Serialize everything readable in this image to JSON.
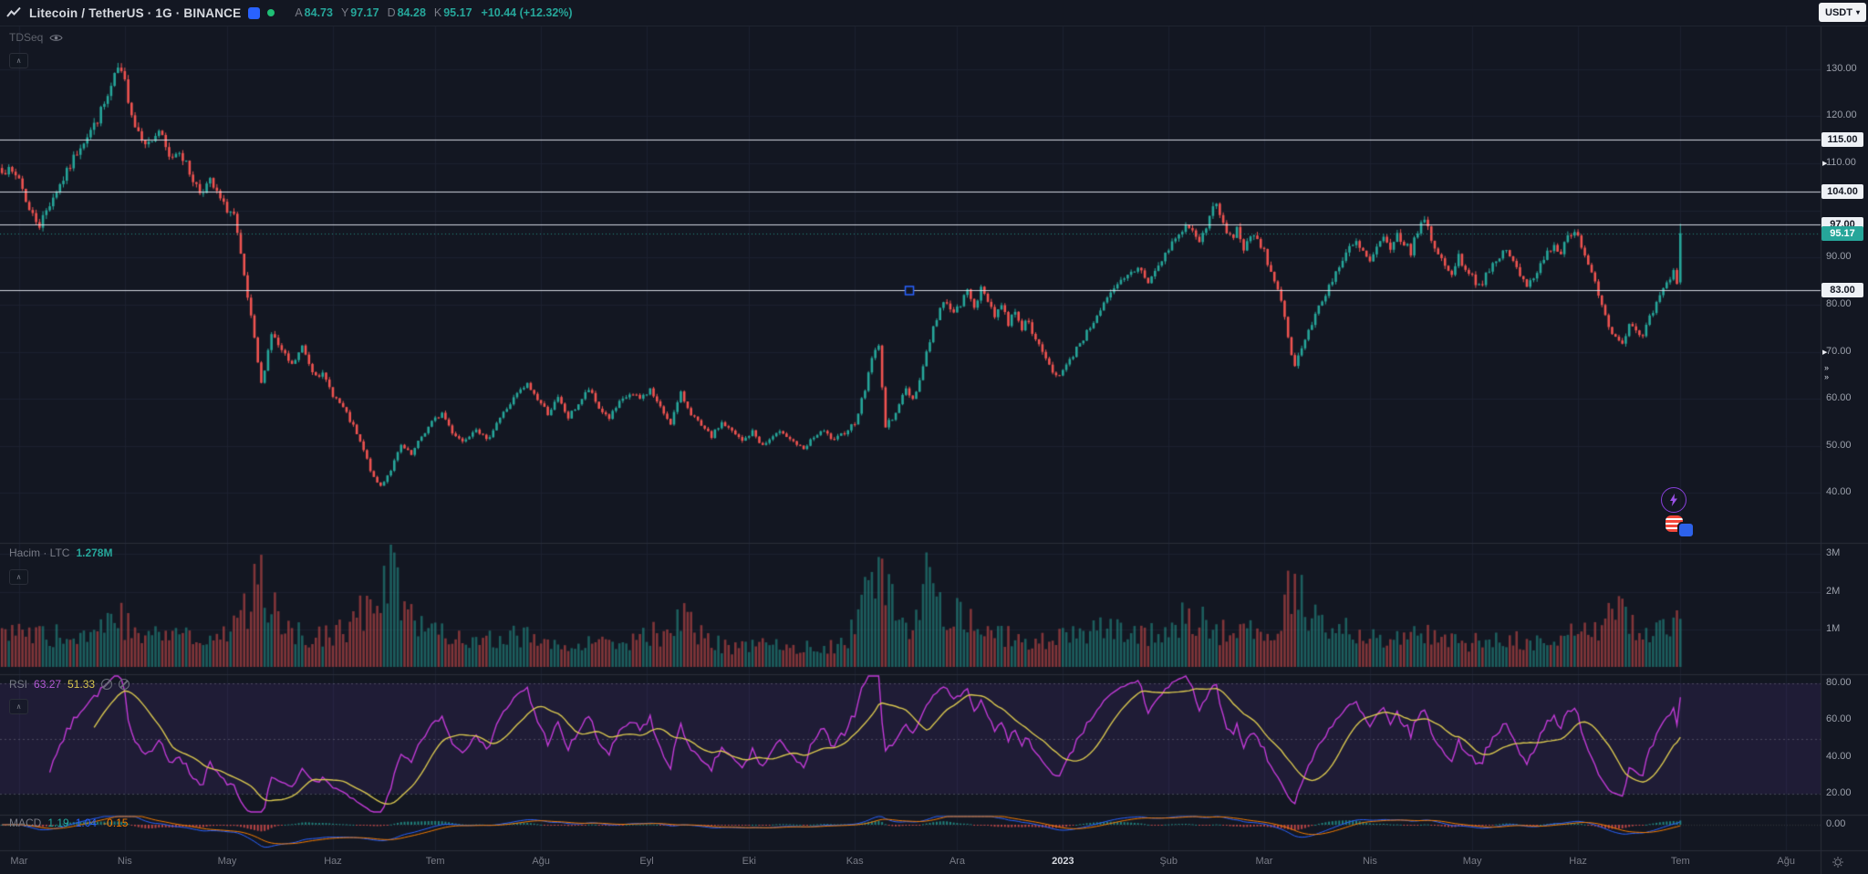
{
  "topbar": {
    "symbol_title": "Litecoin / TetherUS · 1G · BINANCE",
    "ohlc": [
      {
        "label": "A",
        "value": "84.73"
      },
      {
        "label": "Y",
        "value": "97.17"
      },
      {
        "label": "D",
        "value": "84.28"
      },
      {
        "label": "K",
        "value": "95.17"
      }
    ],
    "change": "+10.44 (+12.32%)",
    "currency_button": "USDT"
  },
  "legends": {
    "main_indicator": "TDSeq",
    "volume_label": "Hacim · LTC",
    "volume_value": "1.278M",
    "rsi_label": "RSI",
    "rsi_value": "63.27",
    "rsi_ma_value": "51.33",
    "macd_label": "MACD",
    "macd_values": [
      "1.19",
      "1.04",
      "-0.15"
    ]
  },
  "colors": {
    "background": "#131722",
    "up": "#26a69a",
    "down": "#ef5350",
    "grid": "#1c2130",
    "separator": "#2a2e39",
    "rsi_line": "#c13ad6",
    "rsi_ma": "#d8c64f",
    "macd_line": "#2962ff",
    "macd_signal": "#f57c00",
    "level_line": "#e8ebf3",
    "accent_blue": "#2962ff",
    "text": "#787b86",
    "current_badge": "#26a69a"
  },
  "chart_data": {
    "type": "candlestick",
    "title": "LTCUSDT daily candles with Volume, RSI and MACD panes",
    "x_axis": {
      "months": [
        {
          "label": "Mar",
          "day": 0
        },
        {
          "label": "Nis",
          "day": 31
        },
        {
          "label": "May",
          "day": 61
        },
        {
          "label": "Haz",
          "day": 92
        },
        {
          "label": "Tem",
          "day": 122
        },
        {
          "label": "Ağu",
          "day": 153
        },
        {
          "label": "Eyl",
          "day": 184
        },
        {
          "label": "Eki",
          "day": 214
        },
        {
          "label": "Kas",
          "day": 245
        },
        {
          "label": "Ara",
          "day": 275
        },
        {
          "label": "2023",
          "day": 306,
          "year": true
        },
        {
          "label": "Şub",
          "day": 337
        },
        {
          "label": "Mar",
          "day": 365
        },
        {
          "label": "Nis",
          "day": 396
        },
        {
          "label": "May",
          "day": 426
        },
        {
          "label": "Haz",
          "day": 457
        },
        {
          "label": "Tem",
          "day": 487
        },
        {
          "label": "Ağu",
          "day": 518
        }
      ]
    },
    "price_axis": {
      "ticks": [
        130,
        120,
        110,
        90,
        80,
        70,
        60,
        50,
        40
      ],
      "top_price": 139.1,
      "bottom_price": 29.5
    },
    "grid_prices": [
      130,
      120,
      110,
      100,
      90,
      80,
      70,
      60,
      50,
      40
    ],
    "levels": [
      115,
      104,
      97,
      83
    ],
    "current_price": 95.17,
    "last_candle": {
      "open": 84.73,
      "high": 97.17,
      "low": 84.28,
      "close": 95.17
    },
    "marker": {
      "day": 261,
      "price": 83
    },
    "volume_axis": {
      "ticks": [
        {
          "label": "3M",
          "value": 3
        },
        {
          "label": "2M",
          "value": 2
        },
        {
          "label": "1M",
          "value": 1
        }
      ]
    },
    "last_volume": 1.278,
    "rsi_axis": {
      "ticks": [
        80,
        60,
        40,
        20
      ],
      "dashed": [
        80,
        50,
        20
      ]
    },
    "macd_axis": {
      "ticks": [
        0
      ]
    },
    "price_anchors": [
      [
        -5,
        109
      ],
      [
        0,
        107
      ],
      [
        3,
        100
      ],
      [
        6,
        97
      ],
      [
        10,
        103
      ],
      [
        14,
        108
      ],
      [
        18,
        114
      ],
      [
        22,
        118
      ],
      [
        26,
        124
      ],
      [
        29,
        130
      ],
      [
        31,
        127
      ],
      [
        34,
        118
      ],
      [
        38,
        114
      ],
      [
        41,
        117
      ],
      [
        44,
        111
      ],
      [
        47,
        113
      ],
      [
        50,
        108
      ],
      [
        53,
        104
      ],
      [
        56,
        106
      ],
      [
        60,
        101
      ],
      [
        63,
        99
      ],
      [
        65,
        90
      ],
      [
        68,
        77
      ],
      [
        71,
        63
      ],
      [
        74,
        74
      ],
      [
        77,
        70
      ],
      [
        80,
        67
      ],
      [
        83,
        71
      ],
      [
        86,
        66
      ],
      [
        89,
        65
      ],
      [
        92,
        61
      ],
      [
        95,
        58
      ],
      [
        98,
        54
      ],
      [
        101,
        49
      ],
      [
        104,
        43
      ],
      [
        106,
        41.5
      ],
      [
        109,
        45
      ],
      [
        112,
        50
      ],
      [
        115,
        48
      ],
      [
        118,
        52
      ],
      [
        121,
        55
      ],
      [
        124,
        57
      ],
      [
        127,
        53
      ],
      [
        130,
        51
      ],
      [
        134,
        54
      ],
      [
        137,
        51
      ],
      [
        140,
        55
      ],
      [
        143,
        58
      ],
      [
        146,
        61
      ],
      [
        149,
        63
      ],
      [
        152,
        60
      ],
      [
        155,
        57
      ],
      [
        158,
        60
      ],
      [
        161,
        56
      ],
      [
        164,
        59
      ],
      [
        167,
        62
      ],
      [
        170,
        58
      ],
      [
        173,
        56
      ],
      [
        176,
        59
      ],
      [
        179,
        61
      ],
      [
        182,
        60
      ],
      [
        185,
        62
      ],
      [
        188,
        58
      ],
      [
        191,
        55
      ],
      [
        194,
        61
      ],
      [
        197,
        57
      ],
      [
        200,
        54
      ],
      [
        203,
        52
      ],
      [
        206,
        55
      ],
      [
        209,
        53
      ],
      [
        212,
        51
      ],
      [
        215,
        53
      ],
      [
        218,
        50
      ],
      [
        221,
        52
      ],
      [
        224,
        53
      ],
      [
        227,
        51
      ],
      [
        230,
        49
      ],
      [
        233,
        52
      ],
      [
        236,
        53
      ],
      [
        239,
        51
      ],
      [
        242,
        53
      ],
      [
        245,
        55
      ],
      [
        248,
        62
      ],
      [
        250,
        69
      ],
      [
        252,
        71
      ],
      [
        253,
        63
      ],
      [
        254,
        54
      ],
      [
        256,
        56
      ],
      [
        258,
        59
      ],
      [
        260,
        62
      ],
      [
        262,
        60
      ],
      [
        264,
        64
      ],
      [
        266,
        70
      ],
      [
        268,
        75
      ],
      [
        270,
        79
      ],
      [
        272,
        81
      ],
      [
        274,
        78
      ],
      [
        276,
        80
      ],
      [
        278,
        83
      ],
      [
        280,
        80
      ],
      [
        282,
        83
      ],
      [
        284,
        81
      ],
      [
        286,
        78
      ],
      [
        288,
        80
      ],
      [
        290,
        76
      ],
      [
        292,
        79
      ],
      [
        294,
        75
      ],
      [
        296,
        77
      ],
      [
        298,
        72
      ],
      [
        300,
        70
      ],
      [
        302,
        67
      ],
      [
        304,
        65
      ],
      [
        306,
        66
      ],
      [
        308,
        68
      ],
      [
        310,
        71
      ],
      [
        313,
        74
      ],
      [
        316,
        78
      ],
      [
        319,
        81
      ],
      [
        322,
        84
      ],
      [
        325,
        86
      ],
      [
        328,
        88
      ],
      [
        331,
        85
      ],
      [
        334,
        88
      ],
      [
        337,
        92
      ],
      [
        340,
        95
      ],
      [
        343,
        97
      ],
      [
        346,
        93
      ],
      [
        349,
        99
      ],
      [
        351,
        101
      ],
      [
        353,
        97
      ],
      [
        355,
        94
      ],
      [
        357,
        96
      ],
      [
        359,
        92
      ],
      [
        361,
        95
      ],
      [
        363,
        93
      ],
      [
        365,
        91
      ],
      [
        367,
        87
      ],
      [
        369,
        84
      ],
      [
        371,
        77
      ],
      [
        373,
        70
      ],
      [
        374,
        67
      ],
      [
        376,
        71
      ],
      [
        378,
        74
      ],
      [
        380,
        78
      ],
      [
        382,
        81
      ],
      [
        384,
        84
      ],
      [
        386,
        87
      ],
      [
        388,
        89
      ],
      [
        390,
        92
      ],
      [
        392,
        93
      ],
      [
        394,
        91
      ],
      [
        396,
        89
      ],
      [
        398,
        92
      ],
      [
        400,
        94
      ],
      [
        402,
        91
      ],
      [
        404,
        95
      ],
      [
        406,
        93
      ],
      [
        408,
        91
      ],
      [
        410,
        96
      ],
      [
        412,
        98
      ],
      [
        414,
        94
      ],
      [
        416,
        91
      ],
      [
        418,
        88
      ],
      [
        420,
        87
      ],
      [
        422,
        90
      ],
      [
        424,
        88
      ],
      [
        426,
        86
      ],
      [
        428,
        84
      ],
      [
        430,
        86
      ],
      [
        432,
        88
      ],
      [
        434,
        90
      ],
      [
        436,
        92
      ],
      [
        438,
        89
      ],
      [
        440,
        86
      ],
      [
        442,
        84
      ],
      [
        444,
        86
      ],
      [
        446,
        89
      ],
      [
        448,
        91
      ],
      [
        450,
        93
      ],
      [
        452,
        91
      ],
      [
        454,
        94
      ],
      [
        456,
        95
      ],
      [
        458,
        93
      ],
      [
        460,
        89
      ],
      [
        462,
        85
      ],
      [
        464,
        80
      ],
      [
        466,
        76
      ],
      [
        468,
        73
      ],
      [
        470,
        72
      ],
      [
        472,
        76
      ],
      [
        474,
        74
      ],
      [
        476,
        73
      ],
      [
        478,
        77
      ],
      [
        480,
        80
      ],
      [
        482,
        83
      ],
      [
        484,
        85
      ],
      [
        485,
        87
      ],
      [
        486,
        84.7
      ],
      [
        487,
        95.17
      ]
    ],
    "volume_anchors": [
      [
        -5,
        0.9
      ],
      [
        0,
        0.9
      ],
      [
        10,
        0.8
      ],
      [
        20,
        0.9
      ],
      [
        29,
        1.3
      ],
      [
        34,
        1.0
      ],
      [
        44,
        0.8
      ],
      [
        56,
        0.7
      ],
      [
        63,
        1.0
      ],
      [
        68,
        1.8
      ],
      [
        71,
        2.3
      ],
      [
        74,
        1.5
      ],
      [
        80,
        1.0
      ],
      [
        86,
        0.8
      ],
      [
        92,
        0.9
      ],
      [
        98,
        1.1
      ],
      [
        104,
        1.9
      ],
      [
        106,
        2.2
      ],
      [
        110,
        2.7
      ],
      [
        113,
        1.6
      ],
      [
        118,
        1.2
      ],
      [
        124,
        1.0
      ],
      [
        130,
        0.8
      ],
      [
        137,
        0.7
      ],
      [
        143,
        0.9
      ],
      [
        149,
        0.8
      ],
      [
        155,
        0.7
      ],
      [
        161,
        0.6
      ],
      [
        167,
        0.8
      ],
      [
        173,
        0.6
      ],
      [
        179,
        0.7
      ],
      [
        185,
        0.9
      ],
      [
        191,
        0.7
      ],
      [
        194,
        1.3
      ],
      [
        200,
        0.8
      ],
      [
        206,
        0.6
      ],
      [
        212,
        0.5
      ],
      [
        218,
        0.6
      ],
      [
        224,
        0.5
      ],
      [
        230,
        0.6
      ],
      [
        236,
        0.5
      ],
      [
        242,
        0.6
      ],
      [
        246,
        1.4
      ],
      [
        250,
        2.3
      ],
      [
        253,
        2.4
      ],
      [
        255,
        1.9
      ],
      [
        258,
        1.2
      ],
      [
        262,
        1.0
      ],
      [
        266,
        3.1
      ],
      [
        269,
        2.0
      ],
      [
        272,
        1.6
      ],
      [
        276,
        1.3
      ],
      [
        280,
        1.1
      ],
      [
        284,
        1.0
      ],
      [
        288,
        0.8
      ],
      [
        292,
        0.9
      ],
      [
        296,
        0.7
      ],
      [
        300,
        0.8
      ],
      [
        304,
        0.7
      ],
      [
        308,
        0.8
      ],
      [
        313,
        1.0
      ],
      [
        319,
        1.1
      ],
      [
        325,
        0.9
      ],
      [
        331,
        0.8
      ],
      [
        337,
        1.1
      ],
      [
        343,
        1.3
      ],
      [
        349,
        1.1
      ],
      [
        353,
        0.9
      ],
      [
        359,
        1.0
      ],
      [
        365,
        0.8
      ],
      [
        369,
        1.2
      ],
      [
        371,
        1.8
      ],
      [
        374,
        2.4
      ],
      [
        377,
        1.7
      ],
      [
        382,
        1.2
      ],
      [
        388,
        1.0
      ],
      [
        394,
        0.9
      ],
      [
        400,
        0.8
      ],
      [
        406,
        0.7
      ],
      [
        412,
        0.9
      ],
      [
        418,
        0.7
      ],
      [
        424,
        0.6
      ],
      [
        430,
        0.7
      ],
      [
        436,
        0.8
      ],
      [
        442,
        0.6
      ],
      [
        448,
        0.7
      ],
      [
        454,
        0.8
      ],
      [
        458,
        0.9
      ],
      [
        462,
        1.1
      ],
      [
        466,
        1.3
      ],
      [
        470,
        1.4
      ],
      [
        474,
        0.9
      ],
      [
        478,
        0.8
      ],
      [
        482,
        1.0
      ],
      [
        485,
        1.1
      ],
      [
        487,
        1.278
      ]
    ]
  }
}
